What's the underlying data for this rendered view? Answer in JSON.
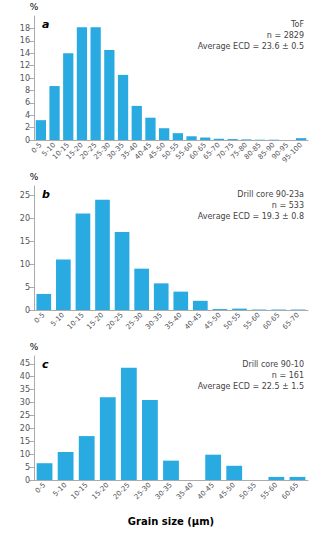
{
  "chart_data": [
    {
      "type": "bar",
      "title": "a",
      "annotations": [
        "ToF",
        "n = 2829",
        "Average ECD = 23.6 ± 0.5"
      ],
      "categories": [
        "0-5",
        "5-10",
        "10-15",
        "15-20",
        "20-25",
        "25-30",
        "30-35",
        "35-40",
        "40-45",
        "45-50",
        "50-55",
        "55-60",
        "60-65",
        "65-70",
        "70-75",
        "75-80",
        "80-85",
        "85-90",
        "90-95",
        "95-100"
      ],
      "values": [
        3.2,
        8.7,
        14.0,
        18.2,
        18.2,
        14.5,
        10.5,
        5.5,
        3.6,
        1.9,
        1.1,
        0.6,
        0.4,
        0.2,
        0.15,
        0.1,
        0.05,
        0.05,
        0.0,
        0.3
      ],
      "color": "#29ABE2",
      "ylabel": "%",
      "ylim": [
        0,
        20
      ],
      "yticks": [
        0,
        2,
        4,
        6,
        8,
        10,
        12,
        14,
        16,
        18
      ],
      "grid": false
    },
    {
      "type": "bar",
      "title": "b",
      "annotations": [
        "Drill core 90-23a",
        "n = 533",
        "Average ECD = 19.3 ± 0.8"
      ],
      "categories": [
        "0-5",
        "5-10",
        "10-15",
        "15-20",
        "20-25",
        "25-30",
        "30-35",
        "35-40",
        "40-45",
        "45-50",
        "50-55",
        "55-60",
        "60-65",
        "65-70"
      ],
      "values": [
        3.5,
        11.0,
        21.0,
        24.0,
        17.0,
        9.0,
        5.8,
        4.0,
        2.0,
        0.2,
        0.3,
        0.1,
        0.1,
        0.1
      ],
      "color": "#29ABE2",
      "ylabel": "%",
      "ylim": [
        0,
        27
      ],
      "yticks": [
        0,
        5,
        10,
        15,
        20,
        25
      ],
      "grid": false
    },
    {
      "type": "bar",
      "title": "c",
      "annotations": [
        "Drill core 90-10",
        "n = 161",
        "Average ECD = 22.5 ± 1.5"
      ],
      "categories": [
        "0-5",
        "5-10",
        "10-15",
        "15-20",
        "20-25",
        "25-30",
        "30-35",
        "35-40",
        "40-45",
        "45-50",
        "50-55",
        "55-60",
        "60-65"
      ],
      "values": [
        6.5,
        10.8,
        17.0,
        32.0,
        43.5,
        31.0,
        7.5,
        0.0,
        9.8,
        5.5,
        0.0,
        1.2,
        1.2
      ],
      "color": "#29ABE2",
      "ylabel": "%",
      "xlabel": "Grain size (μm)",
      "ylim": [
        0,
        48
      ],
      "yticks": [
        0,
        5,
        10,
        15,
        20,
        25,
        30,
        35,
        40,
        45
      ],
      "grid": false
    }
  ]
}
